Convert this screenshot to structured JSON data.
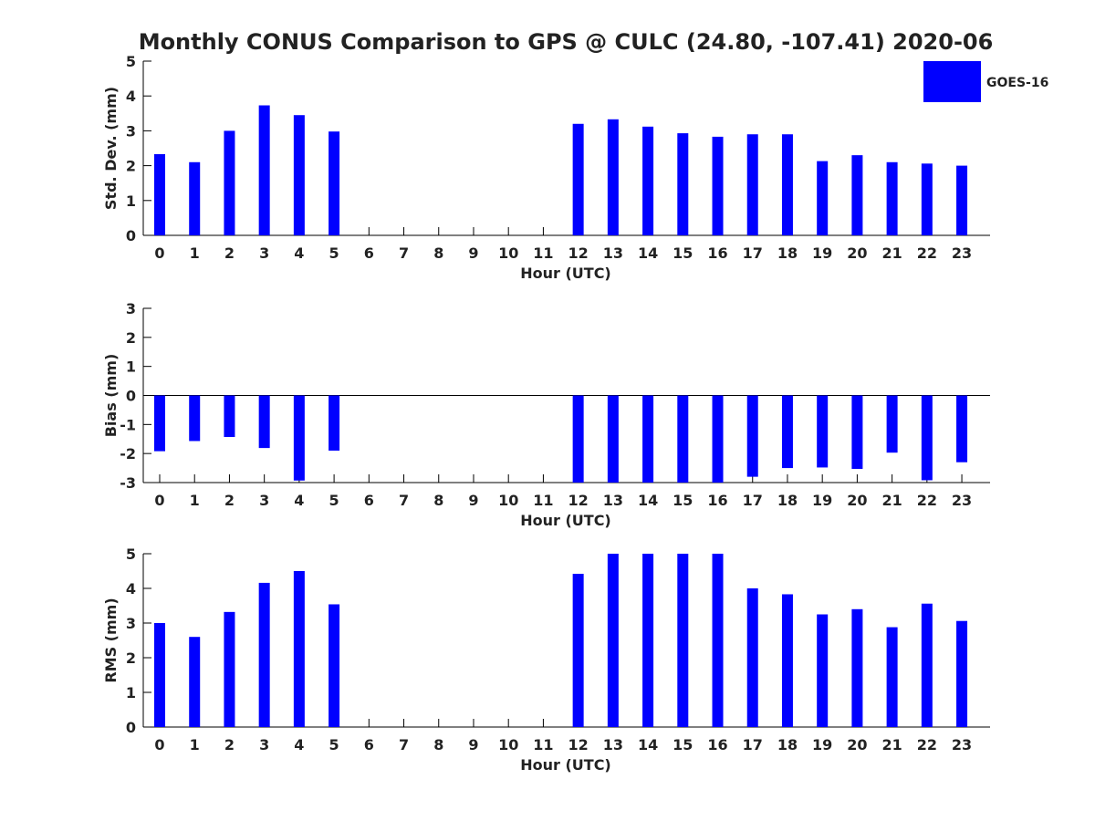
{
  "title": "Monthly CONUS Comparison to GPS @ CULC (24.80, -107.41) 2020-06",
  "legend": {
    "entries": [
      "GOES-16"
    ],
    "placement": "top-right"
  },
  "colors": {
    "bar": "#0000ff",
    "axis": "#000000",
    "text": "#222222"
  },
  "chart_data": [
    {
      "type": "bar",
      "xlabel": "Hour (UTC)",
      "ylabel": "Std. Dev. (mm)",
      "ylim": [
        0,
        5
      ],
      "yticks": [
        0,
        1,
        2,
        3,
        4,
        5
      ],
      "grid": false,
      "categories": [
        "0",
        "1",
        "2",
        "3",
        "4",
        "5",
        "6",
        "7",
        "8",
        "9",
        "10",
        "11",
        "12",
        "13",
        "14",
        "15",
        "16",
        "17",
        "18",
        "19",
        "20",
        "21",
        "22",
        "23"
      ],
      "series": [
        {
          "name": "GOES-16",
          "values": [
            2.33,
            2.1,
            3.0,
            3.73,
            3.45,
            2.98,
            null,
            null,
            null,
            null,
            null,
            null,
            3.2,
            3.33,
            3.12,
            2.93,
            2.83,
            2.9,
            2.9,
            2.13,
            2.3,
            2.1,
            2.06,
            2.0
          ]
        }
      ]
    },
    {
      "type": "bar",
      "xlabel": "Hour (UTC)",
      "ylabel": "Bias (mm)",
      "ylim": [
        -3,
        3
      ],
      "yticks": [
        -3,
        -2,
        -1,
        0,
        1,
        2,
        3
      ],
      "grid": false,
      "zero_line": true,
      "categories": [
        "0",
        "1",
        "2",
        "3",
        "4",
        "5",
        "6",
        "7",
        "8",
        "9",
        "10",
        "11",
        "12",
        "13",
        "14",
        "15",
        "16",
        "17",
        "18",
        "19",
        "20",
        "21",
        "22",
        "23"
      ],
      "series": [
        {
          "name": "GOES-16",
          "values": [
            -1.92,
            -1.57,
            -1.43,
            -1.81,
            -2.93,
            -1.9,
            null,
            null,
            null,
            null,
            null,
            null,
            -3.0,
            -3.0,
            -3.0,
            -3.0,
            -3.0,
            -2.8,
            -2.5,
            -2.48,
            -2.53,
            -1.97,
            -2.92,
            -2.3
          ]
        }
      ]
    },
    {
      "type": "bar",
      "xlabel": "Hour (UTC)",
      "ylabel": "RMS (mm)",
      "ylim": [
        0,
        5
      ],
      "yticks": [
        0,
        1,
        2,
        3,
        4,
        5
      ],
      "grid": false,
      "categories": [
        "0",
        "1",
        "2",
        "3",
        "4",
        "5",
        "6",
        "7",
        "8",
        "9",
        "10",
        "11",
        "12",
        "13",
        "14",
        "15",
        "16",
        "17",
        "18",
        "19",
        "20",
        "21",
        "22",
        "23"
      ],
      "series": [
        {
          "name": "GOES-16",
          "values": [
            3.0,
            2.6,
            3.32,
            4.16,
            4.5,
            3.54,
            null,
            null,
            null,
            null,
            null,
            null,
            4.42,
            5.0,
            5.0,
            5.0,
            5.0,
            4.0,
            3.83,
            3.25,
            3.4,
            2.88,
            3.56,
            3.06
          ]
        }
      ]
    }
  ]
}
